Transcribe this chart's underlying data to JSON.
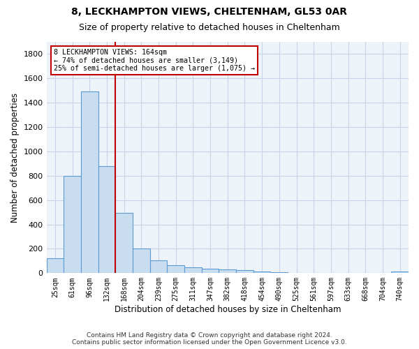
{
  "title1": "8, LECKHAMPTON VIEWS, CHELTENHAM, GL53 0AR",
  "title2": "Size of property relative to detached houses in Cheltenham",
  "xlabel": "Distribution of detached houses by size in Cheltenham",
  "ylabel": "Number of detached properties",
  "footer1": "Contains HM Land Registry data © Crown copyright and database right 2024.",
  "footer2": "Contains public sector information licensed under the Open Government Licence v3.0.",
  "categories": [
    "25sqm",
    "61sqm",
    "96sqm",
    "132sqm",
    "168sqm",
    "204sqm",
    "239sqm",
    "275sqm",
    "311sqm",
    "347sqm",
    "382sqm",
    "418sqm",
    "454sqm",
    "490sqm",
    "525sqm",
    "561sqm",
    "597sqm",
    "633sqm",
    "668sqm",
    "704sqm",
    "740sqm"
  ],
  "values": [
    120,
    800,
    1490,
    880,
    495,
    205,
    105,
    65,
    45,
    35,
    30,
    22,
    15,
    5,
    2,
    1,
    1,
    1,
    1,
    1,
    12
  ],
  "bar_color": "#c9ddf0",
  "bar_edge_color": "#5b9bd5",
  "grid_color": "#c8d4e8",
  "annotation_text_line1": "8 LECKHAMPTON VIEWS: 164sqm",
  "annotation_text_line2": "← 74% of detached houses are smaller (3,149)",
  "annotation_text_line3": "25% of semi-detached houses are larger (1,075) →",
  "annotation_box_facecolor": "#ffffff",
  "annotation_box_edgecolor": "#c00000",
  "vline_color": "#c00000",
  "vline_x": 3.5,
  "ylim": [
    0,
    1900
  ],
  "yticks": [
    0,
    200,
    400,
    600,
    800,
    1000,
    1200,
    1400,
    1600,
    1800
  ],
  "fig_bg": "#ffffff",
  "axes_bg": "#eef2f9"
}
